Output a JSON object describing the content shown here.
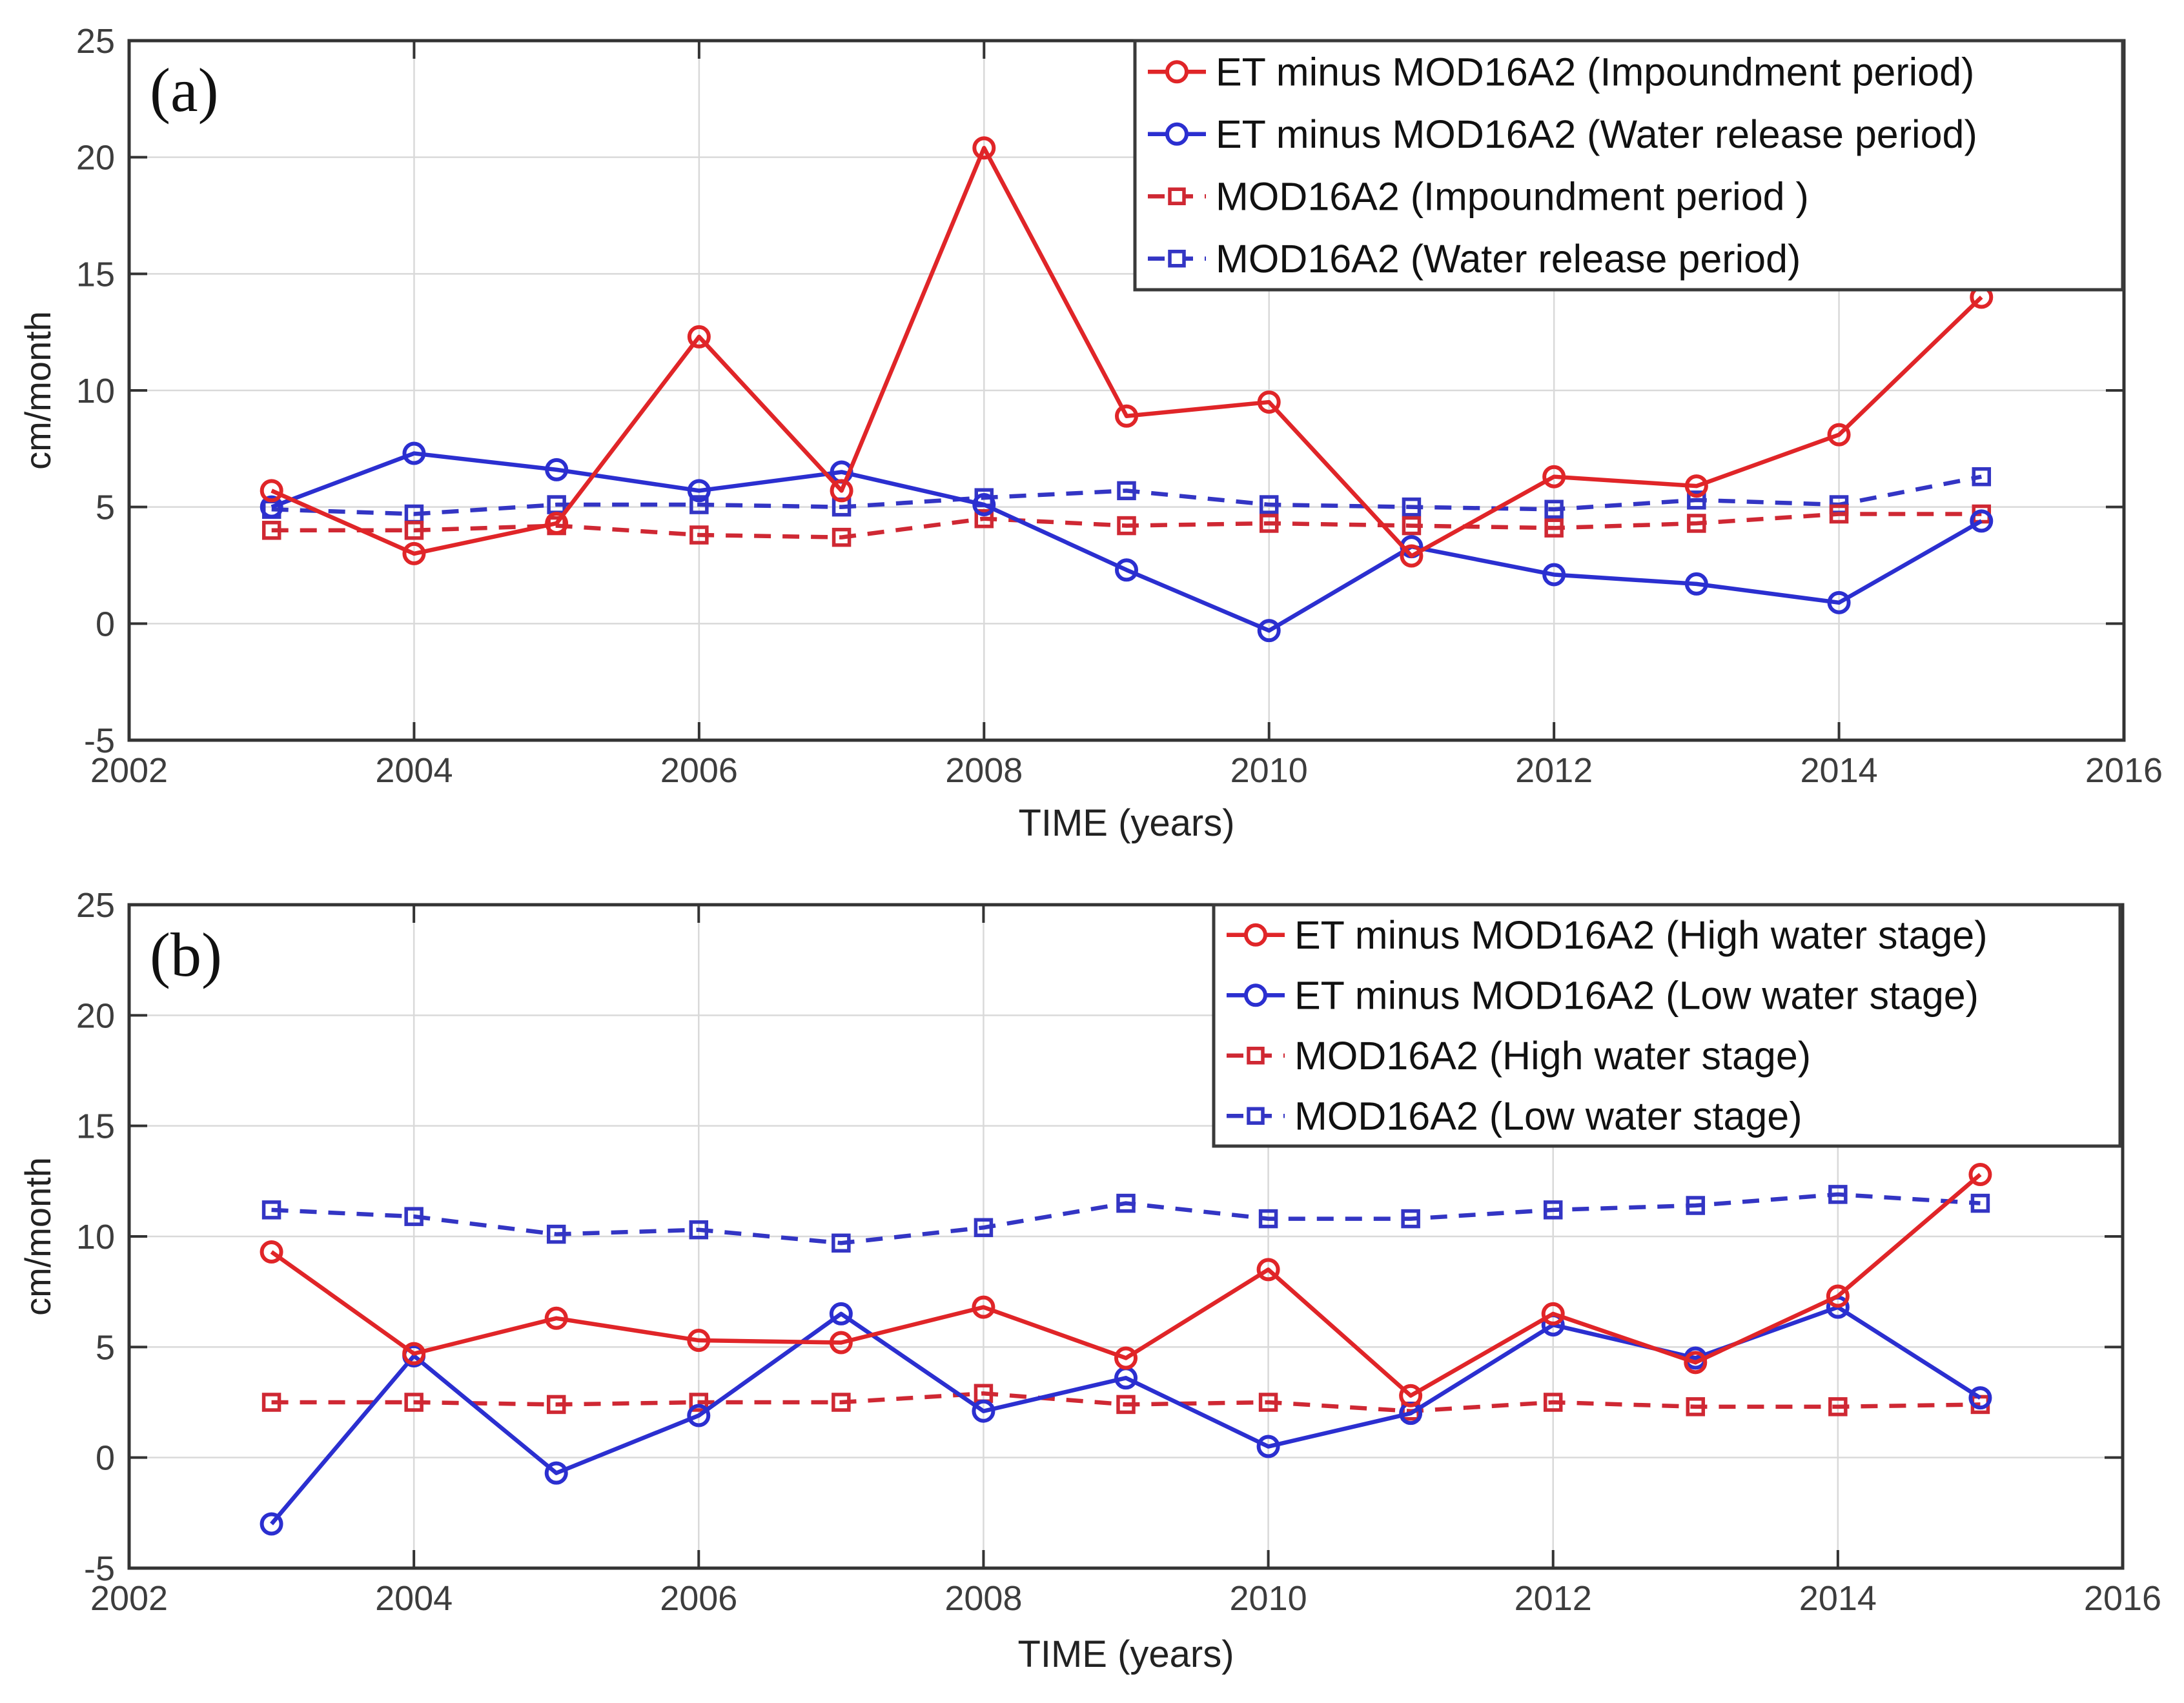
{
  "figure": {
    "background": "#ffffff",
    "axis_color": "#333333",
    "grid_color": "#d9d9d9",
    "tick_label_color": "#3d3d3d",
    "legend_border_color": "#3a3a3a",
    "red_solid": "#e02528",
    "blue_solid": "#2b2fd0",
    "red_dashed": "#cf2833",
    "blue_dashed": "#3335c4"
  },
  "chart_data": [
    {
      "type": "line",
      "panel_label": "(a)",
      "xlabel": "TIME (years)",
      "ylabel": "cm/month",
      "xlim": [
        2002,
        2016
      ],
      "ylim": [
        -5,
        25
      ],
      "xticks": [
        2002,
        2004,
        2006,
        2008,
        2010,
        2012,
        2014,
        2016
      ],
      "yticks": [
        -5,
        0,
        5,
        10,
        15,
        20,
        25
      ],
      "grid": true,
      "legend_position": "top-right",
      "x": [
        2003,
        2004,
        2005,
        2006,
        2007,
        2008,
        2009,
        2010,
        2011,
        2012,
        2013,
        2014,
        2015
      ],
      "series": [
        {
          "name": "ET minus MOD16A2 (Impoundment period)",
          "color": "#e02528",
          "line": "solid",
          "marker": "circle",
          "values": [
            5.7,
            3.0,
            4.3,
            12.3,
            5.7,
            20.4,
            8.9,
            9.5,
            2.9,
            6.3,
            5.9,
            8.1,
            14.0
          ]
        },
        {
          "name": "ET minus MOD16A2 (Water release period)",
          "color": "#2b2fd0",
          "line": "solid",
          "marker": "circle",
          "values": [
            5.0,
            7.3,
            6.6,
            5.7,
            6.5,
            5.1,
            2.3,
            -0.3,
            3.3,
            2.1,
            1.7,
            0.9,
            4.4
          ]
        },
        {
          "name": "MOD16A2 (Impoundment period )",
          "color": "#cf2833",
          "line": "dashed",
          "marker": "square",
          "values": [
            4.0,
            4.0,
            4.2,
            3.8,
            3.7,
            4.5,
            4.2,
            4.3,
            4.2,
            4.1,
            4.3,
            4.7,
            4.7
          ]
        },
        {
          "name": "MOD16A2 (Water release period)",
          "color": "#3335c4",
          "line": "dashed",
          "marker": "square",
          "values": [
            4.9,
            4.7,
            5.1,
            5.1,
            5.0,
            5.4,
            5.7,
            5.1,
            5.0,
            4.9,
            5.3,
            5.1,
            6.3
          ]
        }
      ]
    },
    {
      "type": "line",
      "panel_label": "(b)",
      "xlabel": "TIME (years)",
      "ylabel": "cm/month",
      "xlim": [
        2002,
        2016
      ],
      "ylim": [
        -5,
        25
      ],
      "xticks": [
        2002,
        2004,
        2006,
        2008,
        2010,
        2012,
        2014,
        2016
      ],
      "yticks": [
        -5,
        0,
        5,
        10,
        15,
        20,
        25
      ],
      "grid": true,
      "legend_position": "top-right",
      "x": [
        2003,
        2004,
        2005,
        2006,
        2007,
        2008,
        2009,
        2010,
        2011,
        2012,
        2013,
        2014,
        2015
      ],
      "series": [
        {
          "name": "ET minus MOD16A2 (High water stage)",
          "color": "#e02528",
          "line": "solid",
          "marker": "circle",
          "values": [
            9.3,
            4.7,
            6.3,
            5.3,
            5.2,
            6.8,
            4.5,
            8.5,
            2.8,
            6.5,
            4.3,
            7.3,
            12.8
          ]
        },
        {
          "name": "ET minus MOD16A2 (Low water stage)",
          "color": "#2b2fd0",
          "line": "solid",
          "marker": "circle",
          "values": [
            -3.0,
            4.6,
            -0.7,
            1.9,
            6.5,
            2.1,
            3.6,
            0.5,
            2.0,
            6.0,
            4.5,
            6.8,
            2.7
          ]
        },
        {
          "name": "MOD16A2 (High water stage)",
          "color": "#cf2833",
          "line": "dashed",
          "marker": "square",
          "values": [
            2.5,
            2.5,
            2.4,
            2.5,
            2.5,
            2.9,
            2.4,
            2.5,
            2.1,
            2.5,
            2.3,
            2.3,
            2.4
          ]
        },
        {
          "name": "MOD16A2 (Low water stage)",
          "color": "#3335c4",
          "line": "dashed",
          "marker": "square",
          "values": [
            11.2,
            10.9,
            10.1,
            10.3,
            9.7,
            10.4,
            11.5,
            10.8,
            10.8,
            11.2,
            11.4,
            11.9,
            11.5
          ]
        }
      ]
    }
  ]
}
